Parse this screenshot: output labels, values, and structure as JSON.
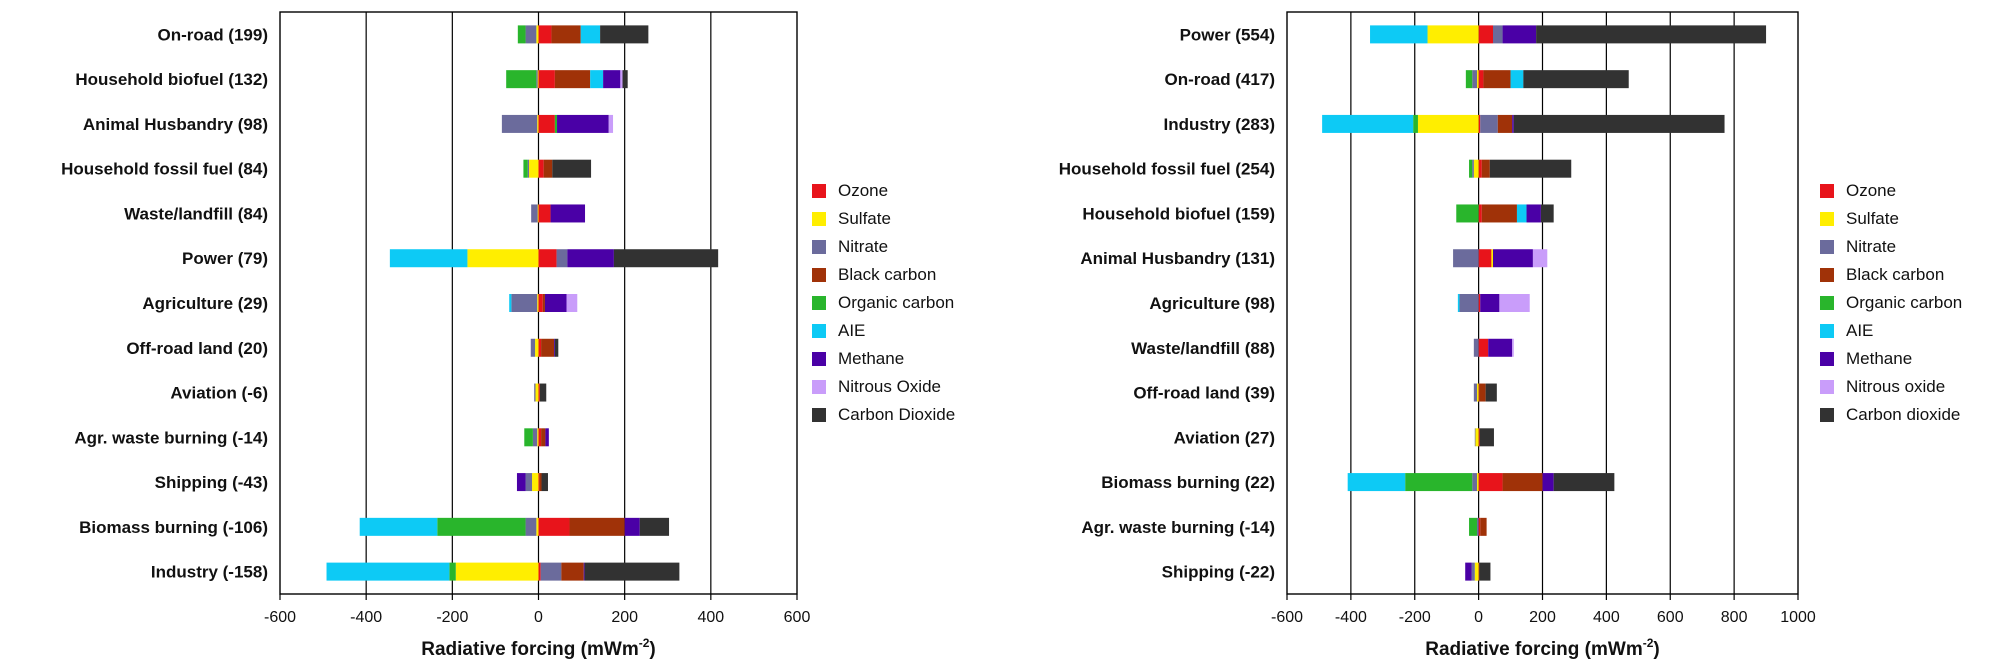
{
  "chart_data": [
    {
      "type": "bar",
      "orientation": "horizontal-stacked",
      "xlabel": "Radiative forcing (mWm",
      "xlabel_sup": "-2",
      "xlabel_close": ")",
      "xlim": [
        -600,
        600
      ],
      "xticks": [
        -600,
        -400,
        -200,
        0,
        200,
        400,
        600
      ],
      "grid": "vertical",
      "legend_position": "right",
      "categories": [
        "On-road (199)",
        "Household biofuel (132)",
        "Animal Husbandry (98)",
        "Household fossil fuel (84)",
        "Waste/landfill (84)",
        "Power (79)",
        "Agriculture (29)",
        "Off-road land (20)",
        "Aviation (-6)",
        "Agr. waste burning (-14)",
        "Shipping (-43)",
        "Biomass burning (-106)",
        "Industry (-158)"
      ],
      "series": [
        {
          "name": "Ozone",
          "color": "#e8141b",
          "values": [
            30,
            38,
            38,
            12,
            28,
            42,
            10,
            6,
            3,
            6,
            2,
            72,
            5
          ]
        },
        {
          "name": "Sulfate",
          "color": "#ffee00",
          "values": [
            -5,
            -2,
            -3,
            -22,
            -2,
            -165,
            -3,
            -8,
            -7,
            -3,
            -15,
            -5,
            -192
          ]
        },
        {
          "name": "Nitrate",
          "color": "#6b6b9c",
          "values": [
            -25,
            -3,
            -82,
            -3,
            -15,
            25,
            -60,
            -10,
            -3,
            -10,
            -15,
            -25,
            48
          ]
        },
        {
          "name": "Black carbon",
          "color": "#a03208",
          "values": [
            68,
            82,
            0,
            20,
            0,
            0,
            5,
            30,
            0,
            10,
            5,
            128,
            52
          ]
        },
        {
          "name": "Organic carbon",
          "color": "#29b52c",
          "values": [
            -18,
            -70,
            5,
            -10,
            0,
            0,
            0,
            0,
            0,
            -20,
            0,
            -205,
            -15
          ]
        },
        {
          "name": "AIE",
          "color": "#0dcaf5",
          "values": [
            45,
            30,
            0,
            0,
            0,
            -180,
            -5,
            0,
            0,
            0,
            0,
            -180,
            -285
          ]
        },
        {
          "name": "Methane",
          "color": "#4a00a6",
          "values": [
            0,
            40,
            120,
            0,
            80,
            108,
            50,
            2,
            0,
            8,
            -20,
            35,
            2
          ]
        },
        {
          "name": "Nitrous Oxide",
          "color": "#c99dfa",
          "values": [
            0,
            5,
            10,
            0,
            0,
            0,
            25,
            0,
            0,
            0,
            0,
            0,
            0
          ]
        },
        {
          "name": "Carbon Dioxide",
          "color": "#323232",
          "values": [
            112,
            12,
            0,
            90,
            0,
            242,
            0,
            8,
            15,
            0,
            15,
            68,
            220
          ]
        }
      ]
    },
    {
      "type": "bar",
      "orientation": "horizontal-stacked",
      "xlabel": "Radiative forcing (mWm",
      "xlabel_sup": "-2",
      "xlabel_close": ")",
      "xlim": [
        -600,
        1000
      ],
      "xticks": [
        -600,
        -400,
        -200,
        0,
        200,
        400,
        600,
        800,
        1000
      ],
      "grid": "vertical",
      "legend_position": "right",
      "categories": [
        "Power (554)",
        "On-road (417)",
        "Industry (283)",
        "Household fossil fuel (254)",
        "Household biofuel (159)",
        "Animal Husbandry (131)",
        "Agriculture (98)",
        "Waste/landfill (88)",
        "Off-road land (39)",
        "Aviation (27)",
        "Biomass burning (22)",
        "Agr. waste burning (-14)",
        "Shipping (-22)"
      ],
      "series": [
        {
          "name": "Ozone",
          "color": "#e8141b",
          "values": [
            45,
            15,
            5,
            10,
            10,
            40,
            5,
            30,
            2,
            3,
            75,
            5,
            2
          ]
        },
        {
          "name": "Sulfate",
          "color": "#ffee00",
          "values": [
            -160,
            -5,
            -190,
            -15,
            0,
            5,
            0,
            0,
            -5,
            -10,
            -5,
            0,
            -12
          ]
        },
        {
          "name": "Nitrate",
          "color": "#6b6b9c",
          "values": [
            30,
            -15,
            55,
            -5,
            0,
            -80,
            -60,
            -15,
            -10,
            -2,
            -15,
            -5,
            -10
          ]
        },
        {
          "name": "Black carbon",
          "color": "#a03208",
          "values": [
            0,
            85,
            45,
            25,
            110,
            0,
            0,
            0,
            20,
            0,
            125,
            20,
            0
          ]
        },
        {
          "name": "Organic carbon",
          "color": "#29b52c",
          "values": [
            0,
            -20,
            -15,
            -10,
            -70,
            0,
            0,
            0,
            0,
            0,
            -210,
            -25,
            0
          ]
        },
        {
          "name": "AIE",
          "color": "#0dcaf5",
          "values": [
            -180,
            40,
            -285,
            0,
            30,
            0,
            -5,
            0,
            0,
            0,
            -180,
            0,
            0
          ]
        },
        {
          "name": "Methane",
          "color": "#4a00a6",
          "values": [
            105,
            0,
            5,
            0,
            45,
            125,
            60,
            75,
            0,
            0,
            35,
            0,
            -20
          ]
        },
        {
          "name": "Nitrous oxide",
          "color": "#c99dfa",
          "values": [
            0,
            0,
            0,
            0,
            0,
            45,
            95,
            5,
            0,
            0,
            0,
            0,
            0
          ]
        },
        {
          "name": "Carbon dioxide",
          "color": "#323232",
          "values": [
            720,
            330,
            660,
            255,
            40,
            0,
            0,
            0,
            35,
            45,
            190,
            0,
            35
          ]
        }
      ]
    }
  ]
}
